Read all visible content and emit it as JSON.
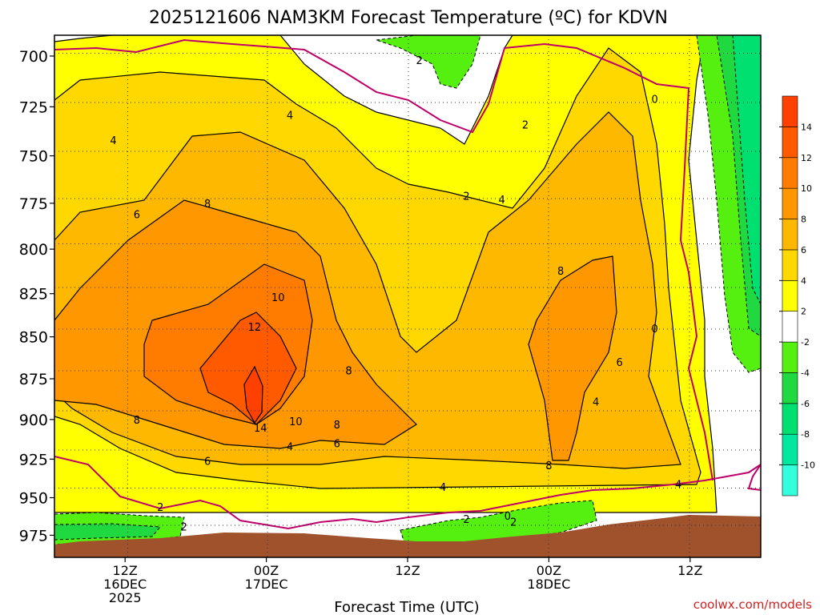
{
  "chart_data": {
    "type": "heatmap",
    "title": "2025121606 NAM3KM Forecast Temperature (ºC) for KDVN",
    "xlabel": "Forecast Time (UTC)",
    "ylabel": "",
    "credit": "coolwx.com/models",
    "x_units": "forecast hour from 2025121606",
    "x_range": [
      0,
      60
    ],
    "y_units": "hPa",
    "y_range": [
      690,
      990
    ],
    "y_inverted": true,
    "x_ticks": [
      {
        "hour": 6,
        "line1": "12Z",
        "line2": "16DEC",
        "line3": "2025"
      },
      {
        "hour": 18,
        "line1": "00Z",
        "line2": "17DEC",
        "line3": ""
      },
      {
        "hour": 30,
        "line1": "12Z",
        "line2": "",
        "line3": ""
      },
      {
        "hour": 42,
        "line1": "00Z",
        "line2": "18DEC",
        "line3": ""
      },
      {
        "hour": 54,
        "line1": "12Z",
        "line2": "",
        "line3": ""
      }
    ],
    "y_ticks": [
      700,
      725,
      750,
      775,
      800,
      825,
      850,
      875,
      900,
      925,
      950,
      975
    ],
    "colorbar": {
      "levels": [
        -12,
        -10,
        -8,
        -6,
        -4,
        -2,
        2,
        4,
        6,
        8,
        10,
        12,
        14,
        16
      ],
      "tick_labels": [
        "-10",
        "-8",
        "-6",
        "-4",
        "-2",
        "2",
        "4",
        "6",
        "8",
        "10",
        "12",
        "14"
      ],
      "colors": [
        "#33ffdd",
        "#00e8a0",
        "#00e070",
        "#20d840",
        "#55f010",
        "#ffffff",
        "#ffff00",
        "#ffd800",
        "#ffb800",
        "#ff9800",
        "#ff7c00",
        "#ff5a00",
        "#ff4000"
      ]
    },
    "contour_interval": 2,
    "zero_line_color": "#c0006a",
    "ground_color": "#a0522d",
    "max_temperature": {
      "value": 14,
      "hour": 17.5,
      "pressure": 895
    },
    "contour_labels": [
      {
        "text": "2",
        "hour": 31,
        "p": 702
      },
      {
        "text": "4",
        "hour": 20,
        "p": 729
      },
      {
        "text": "0",
        "hour": 51,
        "p": 721
      },
      {
        "text": "2",
        "hour": 40,
        "p": 734
      },
      {
        "text": "4",
        "hour": 5,
        "p": 742
      },
      {
        "text": "2",
        "hour": 35,
        "p": 771
      },
      {
        "text": "4",
        "hour": 38,
        "p": 773
      },
      {
        "text": "6",
        "hour": 7,
        "p": 781
      },
      {
        "text": "8",
        "hour": 13,
        "p": 775
      },
      {
        "text": "8",
        "hour": 43,
        "p": 812
      },
      {
        "text": "10",
        "hour": 19,
        "p": 827
      },
      {
        "text": "0",
        "hour": 51,
        "p": 845
      },
      {
        "text": "12",
        "hour": 17,
        "p": 844
      },
      {
        "text": "6",
        "hour": 48,
        "p": 865
      },
      {
        "text": "8",
        "hour": 25,
        "p": 870
      },
      {
        "text": "4",
        "hour": 46,
        "p": 889
      },
      {
        "text": "8",
        "hour": 7,
        "p": 900
      },
      {
        "text": "10",
        "hour": 20.5,
        "p": 901
      },
      {
        "text": "14",
        "hour": 17.5,
        "p": 905
      },
      {
        "text": "8",
        "hour": 24,
        "p": 903
      },
      {
        "text": "6",
        "hour": 24,
        "p": 915
      },
      {
        "text": "4",
        "hour": 20,
        "p": 917
      },
      {
        "text": "6",
        "hour": 13,
        "p": 926
      },
      {
        "text": "8",
        "hour": 42,
        "p": 929
      },
      {
        "text": "4",
        "hour": 33,
        "p": 943
      },
      {
        "text": "4",
        "hour": 53,
        "p": 941
      },
      {
        "text": "2",
        "hour": 9,
        "p": 956
      },
      {
        "text": "2",
        "hour": 35,
        "p": 964
      },
      {
        "text": "0",
        "hour": 38.5,
        "p": 962
      },
      {
        "text": "2",
        "hour": 39,
        "p": 966
      },
      {
        "text": "2",
        "hour": 11,
        "p": 969
      }
    ]
  }
}
